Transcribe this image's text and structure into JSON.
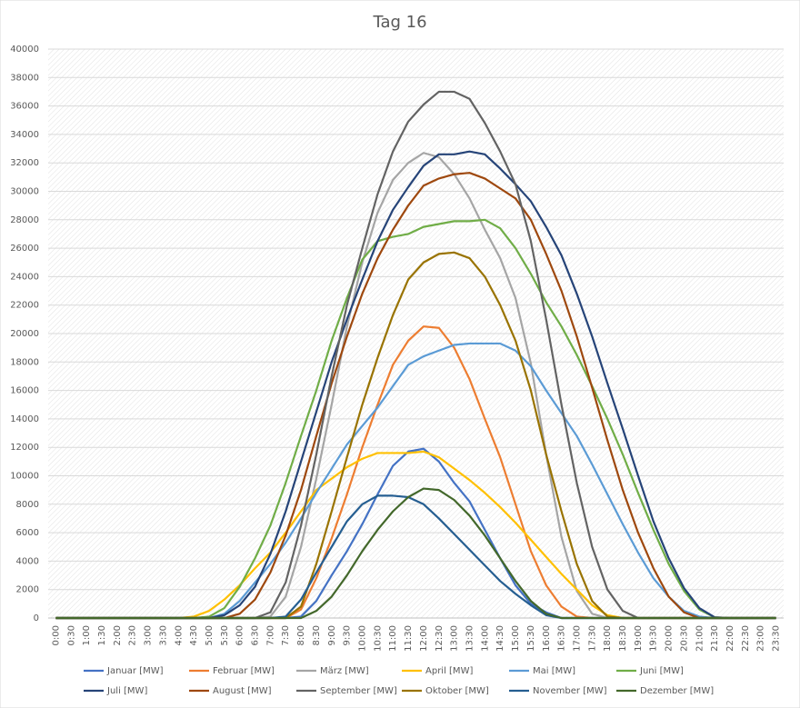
{
  "chart_data": {
    "type": "line",
    "title": "Tag 16",
    "categories": [
      "0:00",
      "0:30",
      "1:00",
      "1:30",
      "2:00",
      "2:30",
      "3:00",
      "3:30",
      "4:00",
      "4:30",
      "5:00",
      "5:30",
      "6:00",
      "6:30",
      "7:00",
      "7:30",
      "8:00",
      "8:30",
      "9:00",
      "9:30",
      "10:00",
      "10:30",
      "11:00",
      "11:30",
      "12:00",
      "12:30",
      "13:00",
      "13:30",
      "14:00",
      "14:30",
      "15:00",
      "15:30",
      "16:00",
      "16:30",
      "17:00",
      "17:30",
      "18:00",
      "18:30",
      "19:00",
      "19:30",
      "20:00",
      "20:30",
      "21:00",
      "21:30",
      "22:00",
      "22:30",
      "23:00",
      "23:30"
    ],
    "ylim": [
      0,
      40000
    ],
    "yticks": [
      0,
      2000,
      4000,
      6000,
      8000,
      10000,
      12000,
      14000,
      16000,
      18000,
      20000,
      22000,
      24000,
      26000,
      28000,
      30000,
      32000,
      34000,
      36000,
      38000,
      40000
    ],
    "grid": true,
    "series": [
      {
        "name": "Januar [MW]",
        "color": "#4472c4",
        "values": [
          0,
          0,
          0,
          0,
          0,
          0,
          0,
          0,
          0,
          0,
          0,
          0,
          0,
          0,
          0,
          0,
          100,
          1200,
          3000,
          4700,
          6600,
          8700,
          10700,
          11700,
          11900,
          11000,
          9500,
          8200,
          6200,
          4200,
          2300,
          1000,
          400,
          0,
          0,
          0,
          0,
          0,
          0,
          0,
          0,
          0,
          0,
          0,
          0,
          0,
          0,
          0
        ]
      },
      {
        "name": "Februar [MW]",
        "color": "#ed7d31",
        "values": [
          0,
          0,
          0,
          0,
          0,
          0,
          0,
          0,
          0,
          0,
          0,
          0,
          0,
          0,
          0,
          0,
          600,
          2800,
          5600,
          8700,
          12000,
          15000,
          17800,
          19500,
          20500,
          20400,
          19000,
          16800,
          14000,
          11300,
          8000,
          4700,
          2300,
          800,
          100,
          0,
          0,
          0,
          0,
          0,
          0,
          0,
          0,
          0,
          0,
          0,
          0,
          0
        ]
      },
      {
        "name": "März [MW]",
        "color": "#a5a5a5",
        "values": [
          0,
          0,
          0,
          0,
          0,
          0,
          0,
          0,
          0,
          0,
          0,
          0,
          0,
          0,
          100,
          1500,
          5000,
          9800,
          15000,
          20500,
          25000,
          28500,
          30800,
          32000,
          32700,
          32400,
          31200,
          29500,
          27300,
          25300,
          22500,
          17900,
          11500,
          5700,
          1900,
          300,
          0,
          0,
          0,
          0,
          0,
          0,
          0,
          0,
          0,
          0,
          0,
          0
        ]
      },
      {
        "name": "April [MW]",
        "color": "#ffc000",
        "values": [
          0,
          0,
          0,
          0,
          0,
          0,
          0,
          0,
          0,
          100,
          500,
          1300,
          2300,
          3500,
          4600,
          6000,
          7500,
          9000,
          9800,
          10600,
          11200,
          11600,
          11600,
          11600,
          11700,
          11300,
          10500,
          9700,
          8800,
          7800,
          6700,
          5500,
          4300,
          3100,
          2000,
          900,
          200,
          0,
          0,
          0,
          0,
          0,
          0,
          0,
          0,
          0,
          0,
          0
        ]
      },
      {
        "name": "Mai [MW]",
        "color": "#5b9bd5",
        "values": [
          0,
          0,
          0,
          0,
          0,
          0,
          0,
          0,
          0,
          0,
          0,
          300,
          1200,
          2500,
          3800,
          5300,
          7000,
          8800,
          10500,
          12200,
          13500,
          14800,
          16300,
          17800,
          18400,
          18800,
          19200,
          19300,
          19300,
          19300,
          18800,
          17700,
          16000,
          14400,
          12800,
          10800,
          8700,
          6600,
          4600,
          2800,
          1500,
          500,
          100,
          0,
          0,
          0,
          0,
          0
        ]
      },
      {
        "name": "Juni [MW]",
        "color": "#70ad47",
        "values": [
          0,
          0,
          0,
          0,
          0,
          0,
          0,
          0,
          0,
          0,
          100,
          700,
          2200,
          4200,
          6500,
          9500,
          12800,
          16000,
          19500,
          22500,
          25200,
          26500,
          26800,
          27000,
          27500,
          27700,
          27900,
          27900,
          28000,
          27400,
          26000,
          24200,
          22200,
          20500,
          18500,
          16300,
          14000,
          11500,
          8800,
          6200,
          3800,
          1900,
          600,
          50,
          0,
          0,
          0,
          0
        ]
      },
      {
        "name": "Juli [MW]",
        "color": "#264478",
        "values": [
          0,
          0,
          0,
          0,
          0,
          0,
          0,
          0,
          0,
          0,
          0,
          200,
          900,
          2200,
          4500,
          7500,
          11000,
          14500,
          18000,
          21000,
          23800,
          26500,
          28700,
          30300,
          31800,
          32600,
          32600,
          32800,
          32600,
          31600,
          30500,
          29300,
          27500,
          25500,
          22800,
          19800,
          16500,
          13300,
          10000,
          6800,
          4200,
          2100,
          700,
          50,
          0,
          0,
          0,
          0
        ]
      },
      {
        "name": "August [MW]",
        "color": "#9e480e",
        "values": [
          0,
          0,
          0,
          0,
          0,
          0,
          0,
          0,
          0,
          0,
          0,
          0,
          300,
          1300,
          3200,
          5800,
          9000,
          12800,
          16500,
          19800,
          22800,
          25300,
          27300,
          29000,
          30400,
          30900,
          31200,
          31300,
          30900,
          30200,
          29500,
          28000,
          25600,
          23000,
          19800,
          16200,
          12500,
          9000,
          6000,
          3500,
          1500,
          400,
          0,
          0,
          0,
          0,
          0,
          0
        ]
      },
      {
        "name": "September [MW]",
        "color": "#636363",
        "values": [
          0,
          0,
          0,
          0,
          0,
          0,
          0,
          0,
          0,
          0,
          0,
          0,
          0,
          0,
          400,
          2500,
          6500,
          11500,
          17000,
          22000,
          26000,
          29800,
          32800,
          34900,
          36100,
          37000,
          37000,
          36500,
          34800,
          32800,
          30500,
          26500,
          21000,
          15000,
          9500,
          5000,
          2000,
          500,
          0,
          0,
          0,
          0,
          0,
          0,
          0,
          0,
          0,
          0
        ]
      },
      {
        "name": "Oktober [MW]",
        "color": "#997300",
        "values": [
          0,
          0,
          0,
          0,
          0,
          0,
          0,
          0,
          0,
          0,
          0,
          0,
          0,
          0,
          0,
          0,
          800,
          3800,
          7500,
          11300,
          15000,
          18300,
          21300,
          23800,
          25000,
          25600,
          25700,
          25300,
          24000,
          22000,
          19500,
          16000,
          11500,
          7500,
          3800,
          1200,
          100,
          0,
          0,
          0,
          0,
          0,
          0,
          0,
          0,
          0,
          0,
          0
        ]
      },
      {
        "name": "November [MW]",
        "color": "#255e91",
        "values": [
          0,
          0,
          0,
          0,
          0,
          0,
          0,
          0,
          0,
          0,
          0,
          0,
          0,
          0,
          0,
          100,
          1300,
          3200,
          5000,
          6800,
          8000,
          8600,
          8600,
          8500,
          8000,
          7000,
          5900,
          4800,
          3700,
          2600,
          1700,
          900,
          200,
          0,
          0,
          0,
          0,
          0,
          0,
          0,
          0,
          0,
          0,
          0,
          0,
          0,
          0,
          0
        ]
      },
      {
        "name": "Dezember [MW]",
        "color": "#43682b",
        "values": [
          0,
          0,
          0,
          0,
          0,
          0,
          0,
          0,
          0,
          0,
          0,
          0,
          0,
          0,
          0,
          0,
          0,
          500,
          1500,
          3000,
          4700,
          6200,
          7500,
          8500,
          9100,
          9000,
          8300,
          7200,
          5800,
          4200,
          2600,
          1200,
          300,
          0,
          0,
          0,
          0,
          0,
          0,
          0,
          0,
          0,
          0,
          0,
          0,
          0,
          0,
          0
        ]
      }
    ]
  }
}
